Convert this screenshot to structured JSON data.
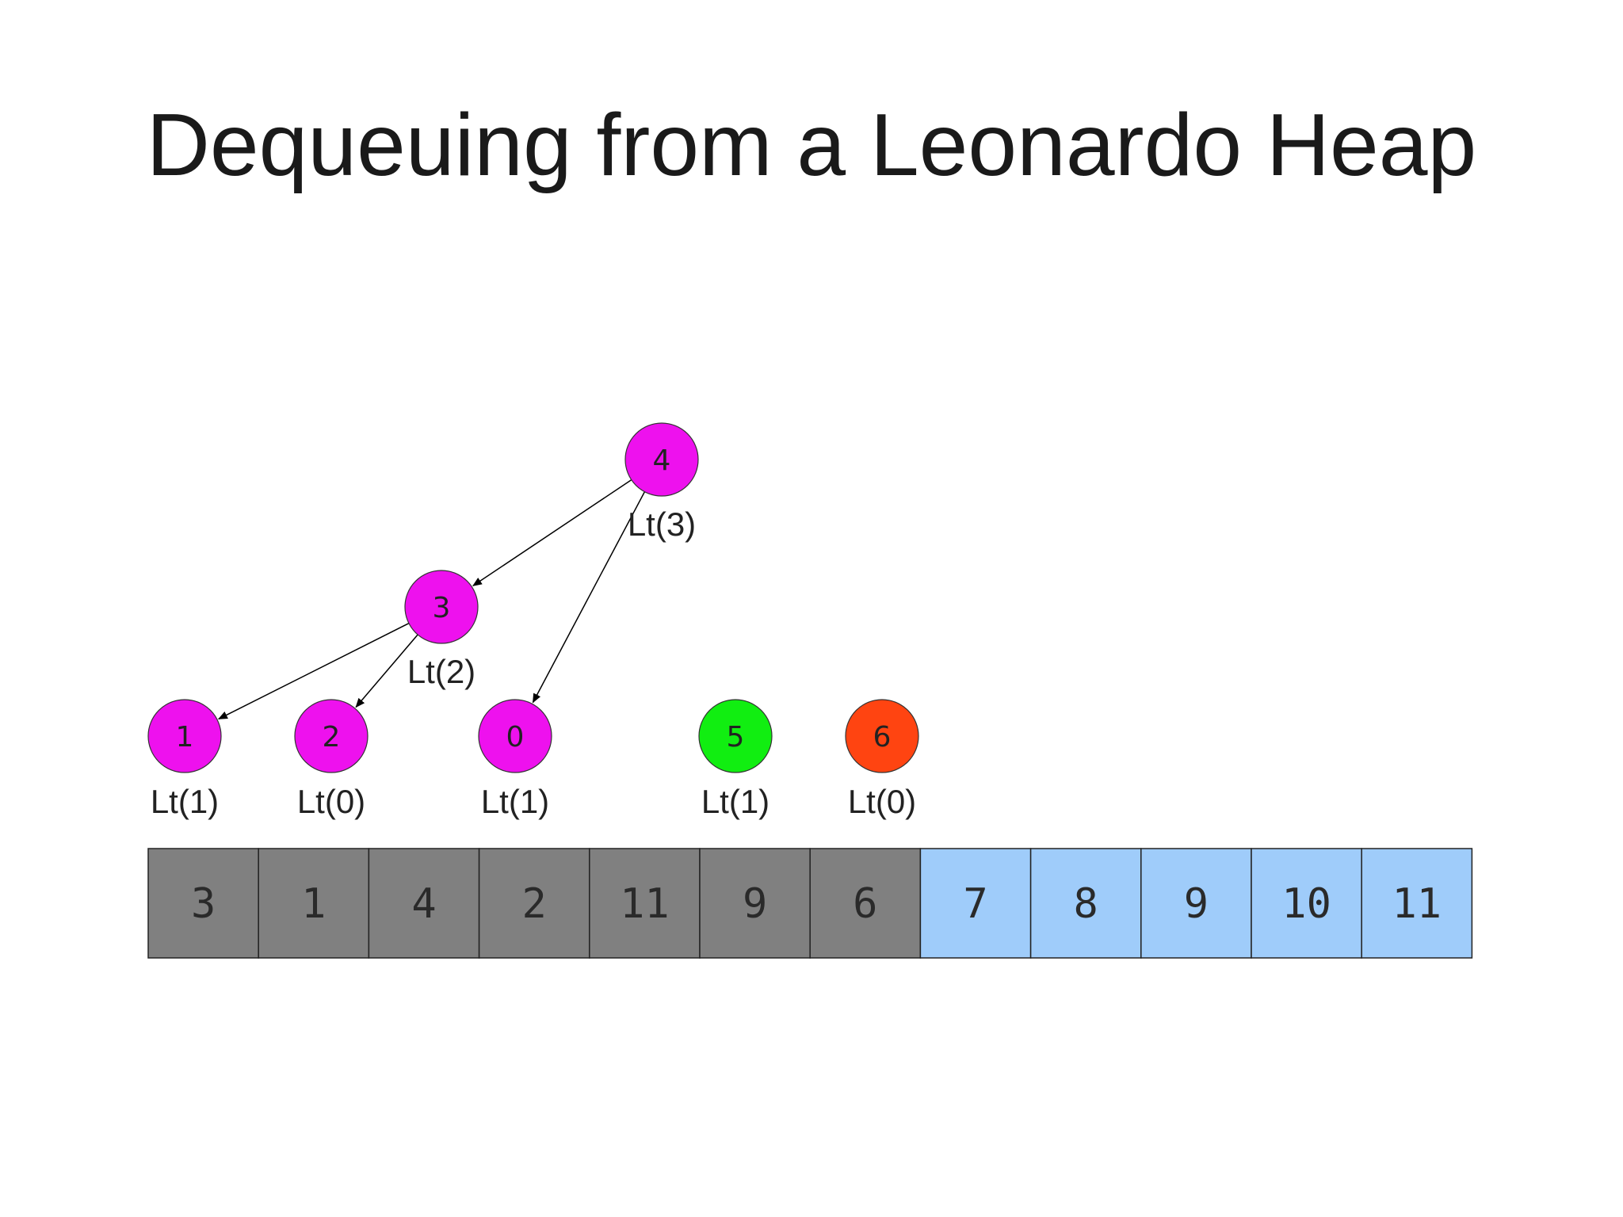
{
  "title": "Dequeuing from a Leonardo Heap",
  "colors": {
    "heap_node": "#ee11ee",
    "green_node": "#11ee11",
    "red_node": "#ff4411",
    "processed_cell": "#808080",
    "sorted_cell": "#9fccfa",
    "edge": "#000000"
  },
  "nodes": [
    {
      "id": "n4",
      "value": "4",
      "label": "Lt(3)",
      "color": "heap_node"
    },
    {
      "id": "n3",
      "value": "3",
      "label": "Lt(2)",
      "color": "heap_node"
    },
    {
      "id": "n1",
      "value": "1",
      "label": "Lt(1)",
      "color": "heap_node"
    },
    {
      "id": "n2",
      "value": "2",
      "label": "Lt(0)",
      "color": "heap_node"
    },
    {
      "id": "n0",
      "value": "0",
      "label": "Lt(1)",
      "color": "heap_node"
    },
    {
      "id": "n5",
      "value": "5",
      "label": "Lt(1)",
      "color": "green_node"
    },
    {
      "id": "n6",
      "value": "6",
      "label": "Lt(0)",
      "color": "red_node"
    }
  ],
  "edges": [
    {
      "from": "n4",
      "to": "n3"
    },
    {
      "from": "n4",
      "to": "n0"
    },
    {
      "from": "n3",
      "to": "n1"
    },
    {
      "from": "n3",
      "to": "n2"
    }
  ],
  "array": [
    {
      "value": "3",
      "state": "processed_cell"
    },
    {
      "value": "1",
      "state": "processed_cell"
    },
    {
      "value": "4",
      "state": "processed_cell"
    },
    {
      "value": "2",
      "state": "processed_cell"
    },
    {
      "value": "11",
      "state": "processed_cell"
    },
    {
      "value": "9",
      "state": "processed_cell"
    },
    {
      "value": "6",
      "state": "processed_cell"
    },
    {
      "value": "7",
      "state": "sorted_cell"
    },
    {
      "value": "8",
      "state": "sorted_cell"
    },
    {
      "value": "9",
      "state": "sorted_cell"
    },
    {
      "value": "10",
      "state": "sorted_cell"
    },
    {
      "value": "11",
      "state": "sorted_cell"
    }
  ]
}
